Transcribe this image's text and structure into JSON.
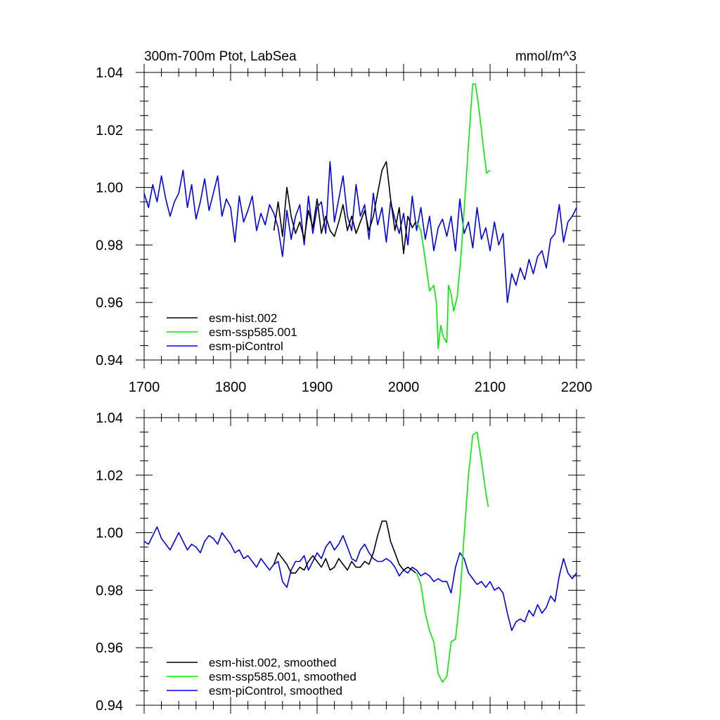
{
  "chart_data": [
    {
      "type": "line",
      "title_left": "300m-700m Ptot, LabSea",
      "title_right": "mmol/m^3",
      "xlim": [
        1700,
        2200
      ],
      "ylim": [
        0.94,
        1.04
      ],
      "x_ticks": [
        "1700",
        "1800",
        "1900",
        "2000",
        "2100",
        "2200"
      ],
      "y_ticks": [
        "0.94",
        "0.96",
        "0.98",
        "1.00",
        "1.02",
        "1.04"
      ],
      "legend_position": "bottom-left",
      "series": [
        {
          "name": "esm-hist.002",
          "color": "#000000",
          "x": [
            1850,
            1855,
            1860,
            1865,
            1870,
            1875,
            1880,
            1885,
            1890,
            1895,
            1900,
            1905,
            1910,
            1915,
            1920,
            1925,
            1930,
            1935,
            1940,
            1945,
            1950,
            1955,
            1960,
            1965,
            1970,
            1975,
            1980,
            1985,
            1990,
            1995,
            2000,
            2005,
            2010,
            2014
          ],
          "y": [
            0.985,
            0.995,
            0.983,
            1.0,
            0.99,
            0.984,
            0.988,
            0.982,
            0.992,
            0.986,
            0.996,
            0.984,
            0.99,
            0.985,
            0.983,
            0.988,
            0.994,
            0.985,
            0.99,
            0.984,
            0.988,
            0.992,
            0.985,
            0.99,
            0.998,
            1.006,
            1.009,
            0.996,
            0.985,
            0.993,
            0.977,
            0.99,
            0.986,
            0.988
          ]
        },
        {
          "name": "esm-ssp585.001",
          "color": "#00ee00",
          "x": [
            2015,
            2020,
            2025,
            2030,
            2035,
            2038,
            2040,
            2043,
            2046,
            2050,
            2052,
            2055,
            2058,
            2062,
            2066,
            2070,
            2074,
            2078,
            2080,
            2083,
            2086,
            2090,
            2093,
            2096,
            2100
          ],
          "y": [
            0.988,
            0.985,
            0.975,
            0.964,
            0.966,
            0.96,
            0.944,
            0.952,
            0.948,
            0.946,
            0.966,
            0.963,
            0.957,
            0.962,
            0.975,
            0.992,
            1.01,
            1.028,
            1.036,
            1.036,
            1.03,
            1.02,
            1.012,
            1.005,
            1.006
          ]
        },
        {
          "name": "esm-piControl",
          "color": "#0000ee",
          "x": [
            1700,
            1705,
            1710,
            1715,
            1720,
            1725,
            1730,
            1735,
            1740,
            1745,
            1750,
            1755,
            1760,
            1765,
            1770,
            1775,
            1780,
            1785,
            1790,
            1795,
            1800,
            1805,
            1810,
            1815,
            1820,
            1825,
            1830,
            1835,
            1840,
            1845,
            1850,
            1855,
            1860,
            1865,
            1870,
            1875,
            1880,
            1885,
            1890,
            1895,
            1900,
            1905,
            1910,
            1915,
            1920,
            1925,
            1930,
            1935,
            1940,
            1945,
            1950,
            1955,
            1960,
            1965,
            1970,
            1975,
            1980,
            1985,
            1990,
            1995,
            2000,
            2005,
            2010,
            2015,
            2020,
            2025,
            2030,
            2035,
            2040,
            2045,
            2050,
            2055,
            2060,
            2065,
            2070,
            2075,
            2080,
            2085,
            2090,
            2095,
            2100,
            2105,
            2110,
            2115,
            2120,
            2125,
            2130,
            2135,
            2140,
            2145,
            2150,
            2155,
            2160,
            2165,
            2170,
            2175,
            2180,
            2185,
            2190,
            2195,
            2200
          ],
          "y": [
            0.998,
            0.993,
            1.001,
            0.995,
            1.004,
            0.996,
            0.99,
            0.995,
            0.998,
            1.006,
            0.993,
            1.001,
            0.989,
            0.995,
            1.003,
            0.992,
            0.998,
            1.004,
            0.99,
            0.996,
            0.993,
            0.981,
            0.997,
            0.988,
            0.992,
            0.997,
            0.985,
            0.991,
            0.987,
            0.994,
            0.991,
            0.986,
            0.976,
            0.992,
            0.982,
            0.99,
            0.994,
            0.98,
            0.997,
            0.984,
            0.993,
            0.995,
            0.984,
            1.009,
            0.988,
            0.996,
            1.004,
            0.99,
            0.985,
            1.001,
            0.99,
            0.994,
            0.982,
            0.998,
            0.987,
            0.993,
            0.981,
            0.995,
            0.989,
            0.984,
            0.991,
            0.98,
            0.997,
            0.985,
            0.993,
            0.982,
            0.99,
            0.978,
            0.986,
            0.989,
            0.983,
            0.99,
            0.978,
            0.996,
            0.984,
            0.988,
            0.979,
            0.993,
            0.982,
            0.986,
            0.978,
            0.988,
            0.98,
            0.984,
            0.96,
            0.97,
            0.966,
            0.972,
            0.968,
            0.975,
            0.97,
            0.976,
            0.978,
            0.972,
            0.982,
            0.984,
            0.994,
            0.981,
            0.988,
            0.99,
            0.993
          ]
        }
      ]
    },
    {
      "type": "line",
      "xlim": [
        1700,
        2200
      ],
      "ylim": [
        0.94,
        1.04
      ],
      "y_ticks": [
        "0.94",
        "0.96",
        "0.98",
        "1.00",
        "1.02",
        "1.04"
      ],
      "legend_position": "bottom-left",
      "series": [
        {
          "name": "esm-hist.002, smoothed",
          "color": "#000000",
          "x": [
            1850,
            1855,
            1860,
            1865,
            1870,
            1875,
            1880,
            1885,
            1890,
            1895,
            1900,
            1905,
            1910,
            1915,
            1920,
            1925,
            1930,
            1935,
            1940,
            1945,
            1950,
            1955,
            1960,
            1965,
            1970,
            1975,
            1980,
            1985,
            1990,
            1995,
            2000,
            2005,
            2010,
            2014
          ],
          "y": [
            0.989,
            0.993,
            0.991,
            0.989,
            0.986,
            0.986,
            0.988,
            0.987,
            0.99,
            0.992,
            0.99,
            0.988,
            0.991,
            0.987,
            0.988,
            0.991,
            0.989,
            0.987,
            0.99,
            0.988,
            0.988,
            0.99,
            0.989,
            0.993,
            0.999,
            1.004,
            1.004,
            0.997,
            0.993,
            0.989,
            0.987,
            0.988,
            0.987,
            0.986
          ]
        },
        {
          "name": "esm-ssp585.001, smoothed",
          "color": "#00ee00",
          "x": [
            2015,
            2020,
            2025,
            2030,
            2035,
            2040,
            2045,
            2050,
            2055,
            2060,
            2065,
            2070,
            2075,
            2080,
            2085,
            2090,
            2095,
            2098
          ],
          "y": [
            0.986,
            0.982,
            0.972,
            0.966,
            0.962,
            0.951,
            0.948,
            0.95,
            0.962,
            0.963,
            0.977,
            0.999,
            1.02,
            1.034,
            1.035,
            1.025,
            1.014,
            1.009
          ]
        },
        {
          "name": "esm-piControl, smoothed",
          "color": "#0000ee",
          "x": [
            1700,
            1705,
            1710,
            1715,
            1720,
            1725,
            1730,
            1735,
            1740,
            1745,
            1750,
            1755,
            1760,
            1765,
            1770,
            1775,
            1780,
            1785,
            1790,
            1795,
            1800,
            1805,
            1810,
            1815,
            1820,
            1825,
            1830,
            1835,
            1840,
            1845,
            1850,
            1855,
            1860,
            1865,
            1870,
            1875,
            1880,
            1885,
            1890,
            1895,
            1900,
            1905,
            1910,
            1915,
            1920,
            1925,
            1930,
            1935,
            1940,
            1945,
            1950,
            1955,
            1960,
            1965,
            1970,
            1975,
            1980,
            1985,
            1990,
            1995,
            2000,
            2005,
            2010,
            2015,
            2020,
            2025,
            2030,
            2035,
            2040,
            2045,
            2050,
            2055,
            2060,
            2065,
            2070,
            2075,
            2080,
            2085,
            2090,
            2095,
            2100,
            2105,
            2110,
            2115,
            2120,
            2125,
            2130,
            2135,
            2140,
            2145,
            2150,
            2155,
            2160,
            2165,
            2170,
            2175,
            2180,
            2185,
            2190,
            2195,
            2200
          ],
          "y": [
            0.997,
            0.996,
            0.999,
            1.002,
            0.998,
            0.996,
            0.994,
            0.997,
            1.0,
            0.997,
            0.994,
            0.996,
            0.995,
            0.993,
            0.997,
            0.999,
            0.998,
            0.996,
            1.0,
            0.998,
            0.996,
            0.993,
            0.994,
            0.991,
            0.992,
            0.99,
            0.988,
            0.991,
            0.989,
            0.987,
            0.989,
            0.99,
            0.983,
            0.981,
            0.987,
            0.99,
            0.99,
            0.992,
            0.987,
            0.99,
            0.993,
            0.991,
            0.995,
            0.997,
            0.994,
            0.996,
            0.999,
            0.995,
            0.991,
            0.99,
            0.994,
            0.996,
            0.993,
            0.991,
            0.99,
            0.99,
            0.991,
            0.99,
            0.988,
            0.985,
            0.987,
            0.986,
            0.988,
            0.987,
            0.985,
            0.986,
            0.985,
            0.983,
            0.984,
            0.983,
            0.983,
            0.979,
            0.988,
            0.993,
            0.991,
            0.986,
            0.984,
            0.982,
            0.983,
            0.981,
            0.983,
            0.98,
            0.981,
            0.979,
            0.972,
            0.966,
            0.969,
            0.97,
            0.969,
            0.973,
            0.971,
            0.975,
            0.972,
            0.974,
            0.978,
            0.976,
            0.985,
            0.991,
            0.986,
            0.984,
            0.986
          ]
        }
      ]
    }
  ]
}
